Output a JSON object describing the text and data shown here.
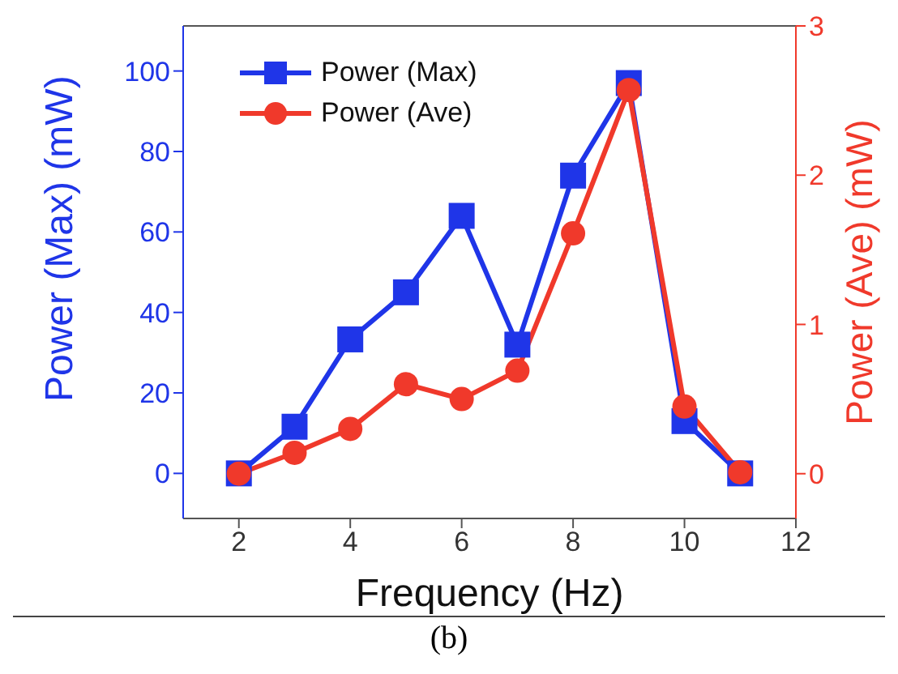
{
  "chart_data": {
    "type": "line",
    "xlabel": "Frequency (Hz)",
    "ylabel": "Power (Max) (mW)",
    "y2label": "Power (Ave) (mW)",
    "x": [
      2,
      3,
      4,
      5,
      6,
      7,
      8,
      9,
      10,
      11
    ],
    "xlim": [
      1,
      12
    ],
    "xticks": [
      2,
      4,
      6,
      8,
      10,
      12
    ],
    "ylim": [
      -11.2,
      111.2
    ],
    "yticks": [
      0,
      20,
      40,
      60,
      80,
      100
    ],
    "y2lim": [
      -0.3,
      3
    ],
    "y2ticks": [
      0,
      1,
      2,
      3
    ],
    "series": [
      {
        "name": "Power (Max)",
        "color": "#1f35e8",
        "marker": "square",
        "values": [
          0,
          11.6,
          33.3,
          45,
          64,
          32,
          74,
          97,
          13,
          0
        ]
      },
      {
        "name": "Power (Ave)",
        "color": "#f0392b",
        "marker": "circle",
        "axis": "y2",
        "values": [
          0,
          0.14,
          0.3,
          0.6,
          0.5,
          0.69,
          1.61,
          2.57,
          0.45,
          0.01
        ]
      }
    ],
    "legend": "top left",
    "grid": false,
    "line_style": "solid",
    "annotations": [
      "(b)"
    ]
  }
}
